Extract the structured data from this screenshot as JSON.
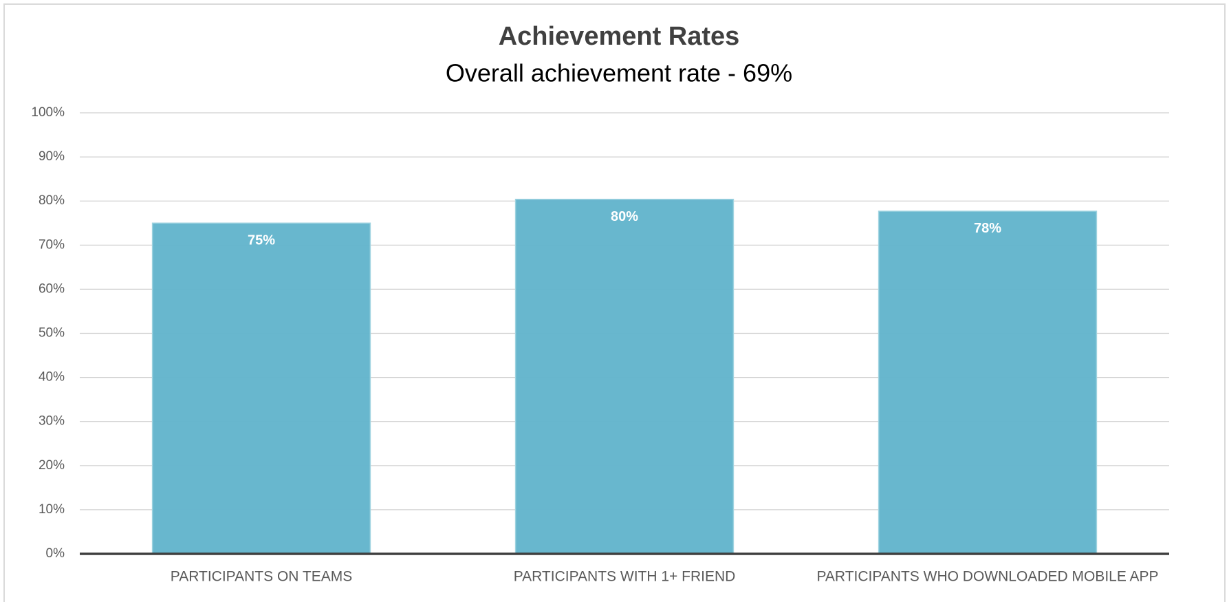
{
  "chart_data": {
    "type": "bar",
    "title": "Achievement Rates",
    "subtitle": "Overall achievement rate - 69%",
    "categories": [
      "PARTICIPANTS ON TEAMS",
      "PARTICIPANTS WITH 1+ FRIEND",
      "PARTICIPANTS WHO DOWNLOADED MOBILE APP"
    ],
    "values": [
      75,
      80.4,
      77.7
    ],
    "value_labels": [
      "75%",
      "80%",
      "78%"
    ],
    "color": "#63b5cc",
    "ylim": [
      0,
      100
    ],
    "yticks": [
      {
        "value": 0,
        "label": "0%"
      },
      {
        "value": 10,
        "label": "10%"
      },
      {
        "value": 20,
        "label": "20%"
      },
      {
        "value": 30,
        "label": "30%"
      },
      {
        "value": 40,
        "label": "40%"
      },
      {
        "value": 50,
        "label": "50%"
      },
      {
        "value": 60,
        "label": "60%"
      },
      {
        "value": 70,
        "label": "70%"
      },
      {
        "value": 80,
        "label": "80%"
      },
      {
        "value": 90,
        "label": "90%"
      },
      {
        "value": 100,
        "label": "100%"
      }
    ],
    "grid": true
  }
}
